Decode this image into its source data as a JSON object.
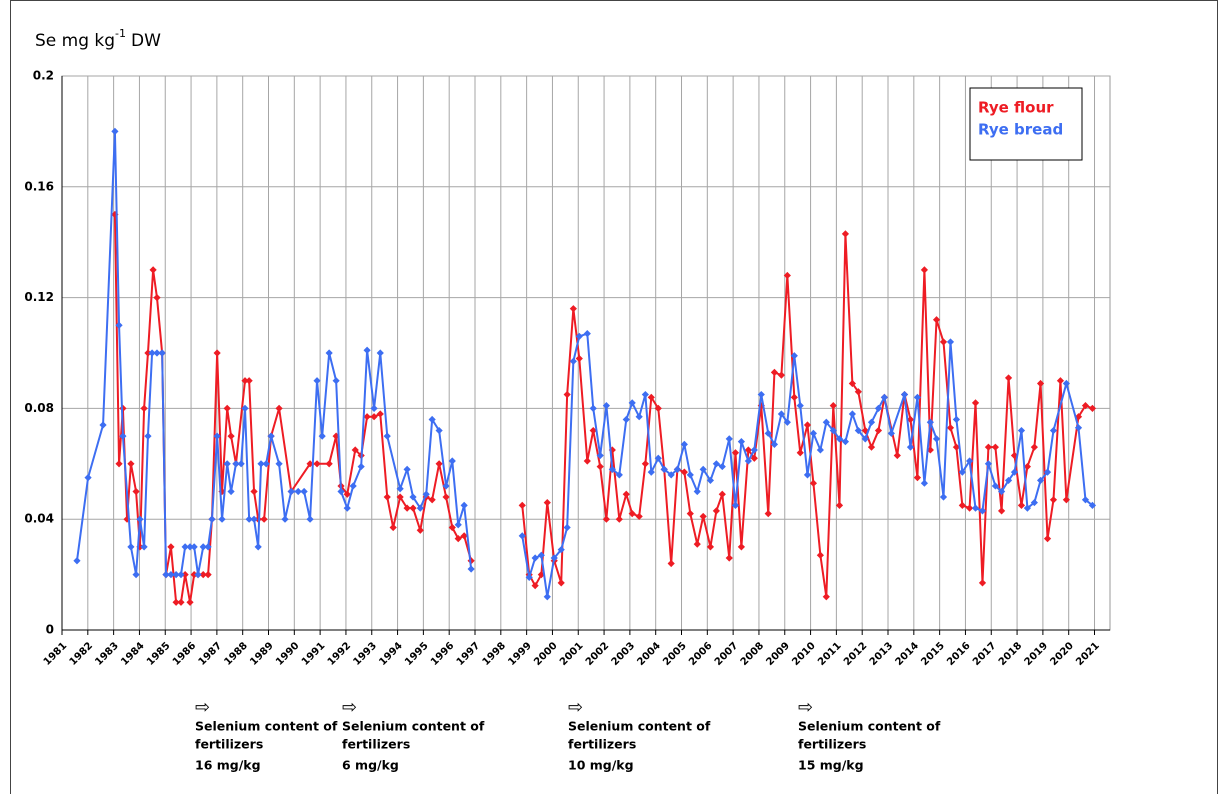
{
  "chart_data": {
    "type": "line",
    "y_label": {
      "text": "Se mg kg",
      "superscript": "-1",
      "suffix": "DW"
    },
    "xlim": [
      1981,
      2021.6
    ],
    "xticks": [
      1981,
      1982,
      1983,
      1984,
      1985,
      1986,
      1987,
      1988,
      1989,
      1990,
      1991,
      1992,
      1993,
      1994,
      1995,
      1996,
      1997,
      1998,
      1999,
      2000,
      2001,
      2002,
      2003,
      2004,
      2005,
      2006,
      2007,
      2008,
      2009,
      2010,
      2011,
      2012,
      2013,
      2014,
      2015,
      2016,
      2017,
      2018,
      2019,
      2020,
      2021
    ],
    "ylim": [
      0,
      0.2
    ],
    "yticks": [
      0,
      0.04,
      0.08,
      0.12,
      0.16,
      0.2
    ],
    "grid": true,
    "legend": "upper right",
    "series": [
      {
        "name": "Rye flour",
        "color": "#ee1c24",
        "x": [
          1983.05,
          1983.21,
          1983.36,
          1983.52,
          1983.67,
          1983.87,
          1984.02,
          1984.18,
          1984.33,
          1984.53,
          1984.68,
          1984.88,
          1985.03,
          1985.22,
          1985.42,
          1985.61,
          1985.77,
          1985.96,
          1986.12,
          1986.27,
          1986.47,
          1986.66,
          1986.81,
          1987.01,
          1987.2,
          1987.4,
          1987.55,
          1987.74,
          1988.09,
          1988.25,
          1988.44,
          1988.6,
          1988.83,
          1989.1,
          1989.41,
          1989.88,
          1990.61,
          1990.88,
          1991.35,
          1991.62,
          1991.81,
          1992.05,
          1992.36,
          1992.59,
          1992.82,
          1993.09,
          1993.33,
          1993.6,
          1993.83,
          1994.1,
          1994.37,
          1994.6,
          1994.88,
          1995.11,
          1995.34,
          1995.61,
          1995.88,
          1996.12,
          1996.35,
          1996.58,
          1996.85,
          null,
          1998.83,
          1999.1,
          1999.33,
          1999.57,
          1999.8,
          2000.07,
          2000.34,
          2000.57,
          2000.81,
          2001.04,
          2001.35,
          2001.58,
          2001.85,
          2002.09,
          2002.32,
          2002.59,
          2002.86,
          2003.09,
          2003.36,
          2003.6,
          2003.83,
          2004.1,
          2004.33,
          2004.6,
          2004.84,
          2005.11,
          2005.34,
          2005.61,
          2005.84,
          2006.12,
          2006.35,
          2006.58,
          2006.85,
          2007.09,
          2007.32,
          2007.59,
          2007.82,
          2008.09,
          2008.36,
          2008.6,
          2008.87,
          2009.1,
          2009.37,
          2009.6,
          2009.88,
          2010.11,
          2010.38,
          2010.61,
          2010.88,
          2011.12,
          2011.35,
          2011.62,
          2011.85,
          2012.12,
          2012.36,
          2012.63,
          2012.86,
          2013.36,
          2013.64,
          2013.87,
          2014.14,
          2014.41,
          2014.64,
          2014.88,
          2015.15,
          2015.42,
          2015.65,
          2015.88,
          2016.16,
          2016.39,
          2016.66,
          2016.89,
          2017.16,
          2017.4,
          2017.67,
          2017.9,
          2018.17,
          2018.4,
          2018.67,
          2018.91,
          2019.18,
          2019.41,
          2019.68,
          2019.91,
          2020.38,
          2020.65,
          2020.92
        ],
        "values": [
          0.15,
          0.06,
          0.08,
          0.04,
          0.06,
          0.05,
          0.03,
          0.08,
          0.1,
          0.13,
          0.12,
          0.1,
          0.02,
          0.03,
          0.01,
          0.01,
          0.02,
          0.01,
          0.02,
          0.02,
          0.02,
          0.02,
          0.04,
          0.1,
          0.05,
          0.08,
          0.07,
          0.06,
          0.09,
          0.09,
          0.05,
          0.04,
          0.04,
          0.07,
          0.08,
          0.05,
          0.06,
          0.06,
          0.06,
          0.07,
          0.052,
          0.049,
          0.065,
          0.063,
          0.077,
          0.077,
          0.078,
          0.048,
          0.037,
          0.048,
          0.044,
          0.044,
          0.036,
          0.048,
          0.047,
          0.06,
          0.048,
          0.037,
          0.033,
          0.034,
          0.025,
          null,
          0.045,
          0.02,
          0.016,
          0.02,
          0.046,
          0.025,
          0.017,
          0.085,
          0.116,
          0.098,
          0.061,
          0.072,
          0.059,
          0.04,
          0.065,
          0.04,
          0.049,
          0.042,
          0.041,
          0.06,
          0.084,
          0.08,
          0.058,
          0.024,
          0.058,
          0.057,
          0.042,
          0.031,
          0.041,
          0.03,
          0.043,
          0.049,
          0.026,
          0.064,
          0.03,
          0.065,
          0.062,
          0.081,
          0.042,
          0.093,
          0.092,
          0.128,
          0.084,
          0.064,
          0.074,
          0.053,
          0.027,
          0.012,
          0.081,
          0.045,
          0.143,
          0.089,
          0.086,
          0.072,
          0.066,
          0.072,
          0.084,
          0.063,
          0.085,
          0.076,
          0.055,
          0.13,
          0.065,
          0.112,
          0.104,
          0.073,
          0.066,
          0.045,
          0.044,
          0.082,
          0.017,
          0.066,
          0.066,
          0.043,
          0.091,
          0.063,
          0.045,
          0.059,
          0.066,
          0.089,
          0.033,
          0.047,
          0.09,
          0.047,
          0.077,
          0.081,
          0.08
        ]
      },
      {
        "name": "Rye bread",
        "color": "#3d6ef2",
        "x": [
          1981.58,
          1982.01,
          1982.59,
          1983.05,
          1983.21,
          1983.36,
          1983.67,
          1983.87,
          1984.02,
          1984.18,
          1984.33,
          1984.49,
          1984.68,
          1984.88,
          1985.03,
          1985.22,
          1985.42,
          1985.61,
          1985.77,
          1985.96,
          1986.12,
          1986.27,
          1986.47,
          1986.66,
          1986.81,
          1987.01,
          1987.2,
          1987.4,
          1987.55,
          1987.74,
          1987.94,
          1988.09,
          1988.25,
          1988.44,
          1988.6,
          1988.71,
          1988.91,
          1989.1,
          1989.41,
          1989.64,
          1989.88,
          1990.15,
          1990.38,
          1990.61,
          1990.88,
          1991.08,
          1991.35,
          1991.62,
          1991.81,
          1992.05,
          1992.28,
          1992.59,
          1992.82,
          1993.09,
          1993.33,
          1993.6,
          1994.1,
          1994.37,
          1994.6,
          1994.88,
          1995.11,
          1995.34,
          1995.61,
          1995.88,
          1996.12,
          1996.35,
          1996.58,
          1996.85,
          null,
          1998.83,
          1999.1,
          1999.33,
          1999.57,
          1999.8,
          2000.07,
          2000.34,
          2000.57,
          2000.81,
          2001.04,
          2001.35,
          2001.58,
          2001.85,
          2002.09,
          2002.32,
          2002.59,
          2002.86,
          2003.09,
          2003.36,
          2003.6,
          2003.83,
          2004.1,
          2004.33,
          2004.6,
          2004.84,
          2005.11,
          2005.34,
          2005.61,
          2005.84,
          2006.12,
          2006.35,
          2006.58,
          2006.85,
          2007.09,
          2007.32,
          2007.59,
          2007.82,
          2008.09,
          2008.36,
          2008.6,
          2008.87,
          2009.1,
          2009.37,
          2009.6,
          2009.88,
          2010.11,
          2010.38,
          2010.61,
          2010.88,
          2011.12,
          2011.35,
          2011.62,
          2011.85,
          2012.12,
          2012.36,
          2012.63,
          2012.86,
          2013.13,
          2013.64,
          2013.87,
          2014.14,
          2014.41,
          2014.64,
          2014.88,
          2015.15,
          2015.42,
          2015.65,
          2015.88,
          2016.16,
          2016.39,
          2016.66,
          2016.89,
          2017.16,
          2017.4,
          2017.67,
          2017.9,
          2018.17,
          2018.4,
          2018.67,
          2018.91,
          2019.18,
          2019.41,
          2019.91,
          2020.38,
          2020.65,
          2020.92
        ],
        "values": [
          0.025,
          0.055,
          0.074,
          0.18,
          0.11,
          0.07,
          0.03,
          0.02,
          0.04,
          0.03,
          0.07,
          0.1,
          0.1,
          0.1,
          0.02,
          0.02,
          0.02,
          0.02,
          0.03,
          0.03,
          0.03,
          0.02,
          0.03,
          0.03,
          0.04,
          0.07,
          0.04,
          0.06,
          0.05,
          0.06,
          0.06,
          0.08,
          0.04,
          0.04,
          0.03,
          0.06,
          0.06,
          0.07,
          0.06,
          0.04,
          0.05,
          0.05,
          0.05,
          0.04,
          0.09,
          0.07,
          0.1,
          0.09,
          0.05,
          0.044,
          0.052,
          0.059,
          0.101,
          0.08,
          0.1,
          0.07,
          0.051,
          0.058,
          0.048,
          0.044,
          0.049,
          0.076,
          0.072,
          0.052,
          0.061,
          0.038,
          0.045,
          0.022,
          null,
          0.034,
          0.019,
          0.026,
          0.027,
          0.012,
          0.026,
          0.029,
          0.037,
          0.097,
          0.106,
          0.107,
          0.08,
          0.063,
          0.081,
          0.058,
          0.056,
          0.076,
          0.082,
          0.077,
          0.085,
          0.057,
          0.062,
          0.058,
          0.056,
          0.058,
          0.067,
          0.056,
          0.05,
          0.058,
          0.054,
          0.06,
          0.059,
          0.069,
          0.045,
          0.068,
          0.061,
          0.065,
          0.085,
          0.071,
          0.067,
          0.078,
          0.075,
          0.099,
          0.081,
          0.056,
          0.071,
          0.065,
          0.075,
          0.072,
          0.069,
          0.068,
          0.078,
          0.072,
          0.069,
          0.075,
          0.08,
          0.084,
          0.071,
          0.085,
          0.066,
          0.084,
          0.053,
          0.075,
          0.069,
          0.048,
          0.104,
          0.076,
          0.057,
          0.061,
          0.044,
          0.043,
          0.06,
          0.052,
          0.05,
          0.054,
          0.057,
          0.072,
          0.044,
          0.046,
          0.054,
          0.057,
          0.072,
          0.089,
          0.073,
          0.047,
          0.045
        ]
      }
    ],
    "annotations": [
      {
        "arrow": "⇨",
        "lines": [
          "Selenium content of",
          "fertilizers"
        ],
        "dose": "16 mg/kg"
      },
      {
        "arrow": "⇨",
        "lines": [
          "Selenium content of",
          "fertilizers"
        ],
        "dose": "6 mg/kg"
      },
      {
        "arrow": "⇨",
        "lines": [
          "Selenium content of",
          "fertilizers"
        ],
        "dose": "10 mg/kg"
      },
      {
        "arrow": "⇨",
        "lines": [
          "Selenium content of",
          "fertilizers"
        ],
        "dose": "15 mg/kg"
      }
    ]
  }
}
